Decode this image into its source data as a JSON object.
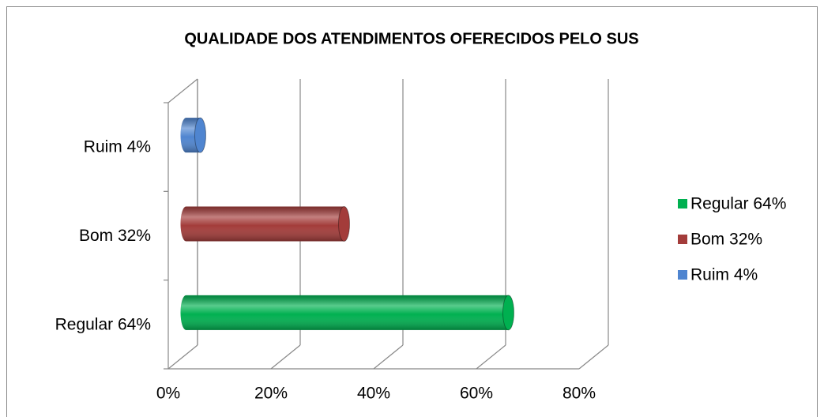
{
  "chart_data": {
    "type": "bar",
    "orientation": "horizontal",
    "title": "QUALIDADE DOS ATENDIMENTOS OFERECIDOS PELO SUS",
    "categories": [
      "Regular 64%",
      "Bom 32%",
      "Ruim 4%"
    ],
    "values": [
      64,
      32,
      4
    ],
    "colors": [
      "#00b050",
      "#a33c3a",
      "#4f85d0"
    ],
    "xlim": [
      0,
      80
    ],
    "xticks": [
      {
        "value": 0,
        "label": "0%"
      },
      {
        "value": 20,
        "label": "20%"
      },
      {
        "value": 40,
        "label": "40%"
      },
      {
        "value": 60,
        "label": "60%"
      },
      {
        "value": 80,
        "label": "80%"
      }
    ],
    "grid": true,
    "legend": "right"
  }
}
